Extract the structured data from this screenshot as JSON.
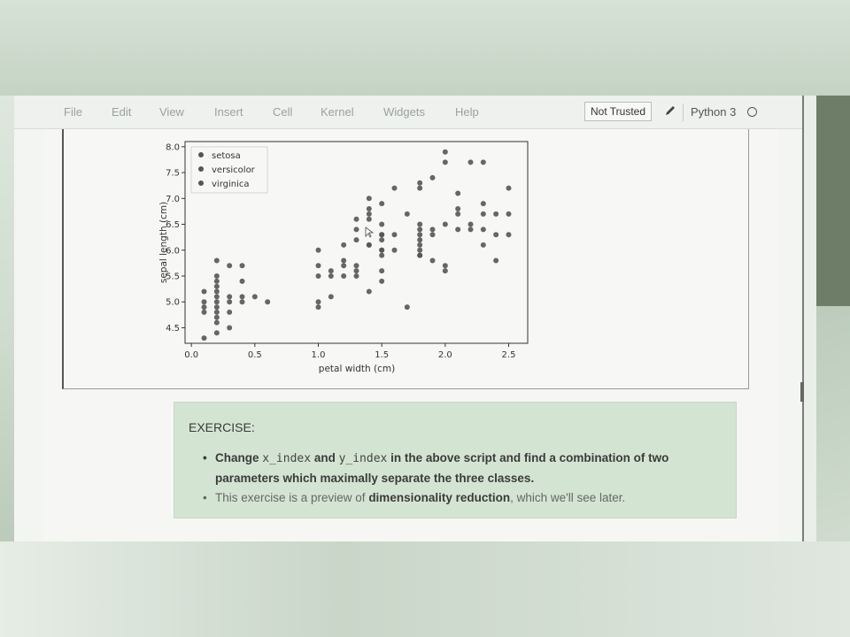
{
  "menubar": {
    "items": [
      "File",
      "Edit",
      "View",
      "Insert",
      "Cell",
      "Kernel",
      "Widgets",
      "Help"
    ],
    "trusted_label": "Not Trusted",
    "kernel_name": "Python 3"
  },
  "chart_data": {
    "type": "scatter",
    "title": "",
    "xlabel": "petal width (cm)",
    "ylabel": "sepal length (cm)",
    "xlim": [
      -0.05,
      2.65
    ],
    "ylim": [
      4.2,
      8.1
    ],
    "xticks": [
      "0.0",
      "0.5",
      "1.0",
      "1.5",
      "2.0",
      "2.5"
    ],
    "xtick_values": [
      0.0,
      0.5,
      1.0,
      1.5,
      2.0,
      2.5
    ],
    "yticks": [
      "4.5",
      "5.0",
      "5.5",
      "6.0",
      "6.5",
      "7.0",
      "7.5",
      "8.0"
    ],
    "ytick_values": [
      4.5,
      5.0,
      5.5,
      6.0,
      6.5,
      7.0,
      7.5,
      8.0
    ],
    "legend_position": "top-left",
    "marker_color": "#555555",
    "series": [
      {
        "name": "setosa",
        "points": [
          [
            0.1,
            4.3
          ],
          [
            0.1,
            4.8
          ],
          [
            0.1,
            4.9
          ],
          [
            0.1,
            5.0
          ],
          [
            0.1,
            5.2
          ],
          [
            0.2,
            4.4
          ],
          [
            0.2,
            4.6
          ],
          [
            0.2,
            4.7
          ],
          [
            0.2,
            4.8
          ],
          [
            0.2,
            4.9
          ],
          [
            0.2,
            5.0
          ],
          [
            0.2,
            5.1
          ],
          [
            0.2,
            5.2
          ],
          [
            0.2,
            5.3
          ],
          [
            0.2,
            5.4
          ],
          [
            0.2,
            5.5
          ],
          [
            0.2,
            5.8
          ],
          [
            0.3,
            4.5
          ],
          [
            0.3,
            4.8
          ],
          [
            0.3,
            5.0
          ],
          [
            0.3,
            5.1
          ],
          [
            0.3,
            5.7
          ],
          [
            0.4,
            5.0
          ],
          [
            0.4,
            5.1
          ],
          [
            0.4,
            5.4
          ],
          [
            0.4,
            5.7
          ],
          [
            0.5,
            5.1
          ],
          [
            0.6,
            5.0
          ]
        ]
      },
      {
        "name": "versicolor",
        "points": [
          [
            1.0,
            4.9
          ],
          [
            1.0,
            5.0
          ],
          [
            1.0,
            5.5
          ],
          [
            1.0,
            5.7
          ],
          [
            1.0,
            6.0
          ],
          [
            1.1,
            5.1
          ],
          [
            1.1,
            5.5
          ],
          [
            1.1,
            5.6
          ],
          [
            1.2,
            5.5
          ],
          [
            1.2,
            5.7
          ],
          [
            1.2,
            5.8
          ],
          [
            1.2,
            6.1
          ],
          [
            1.3,
            5.5
          ],
          [
            1.3,
            5.6
          ],
          [
            1.3,
            5.7
          ],
          [
            1.3,
            6.2
          ],
          [
            1.3,
            6.4
          ],
          [
            1.3,
            6.6
          ],
          [
            1.4,
            5.2
          ],
          [
            1.4,
            6.1
          ],
          [
            1.4,
            6.6
          ],
          [
            1.4,
            6.7
          ],
          [
            1.4,
            6.8
          ],
          [
            1.4,
            7.0
          ],
          [
            1.5,
            5.4
          ],
          [
            1.5,
            5.6
          ],
          [
            1.5,
            5.9
          ],
          [
            1.5,
            6.0
          ],
          [
            1.5,
            6.2
          ],
          [
            1.5,
            6.3
          ],
          [
            1.5,
            6.5
          ],
          [
            1.5,
            6.9
          ],
          [
            1.6,
            6.0
          ],
          [
            1.6,
            6.3
          ],
          [
            1.7,
            4.9
          ],
          [
            1.7,
            6.7
          ],
          [
            1.8,
            5.9
          ]
        ]
      },
      {
        "name": "virginica",
        "points": [
          [
            1.4,
            6.1
          ],
          [
            1.5,
            6.0
          ],
          [
            1.5,
            6.3
          ],
          [
            1.6,
            7.2
          ],
          [
            1.8,
            5.9
          ],
          [
            1.8,
            6.0
          ],
          [
            1.8,
            6.1
          ],
          [
            1.8,
            6.2
          ],
          [
            1.8,
            6.3
          ],
          [
            1.8,
            6.4
          ],
          [
            1.8,
            6.5
          ],
          [
            1.8,
            7.2
          ],
          [
            1.8,
            7.3
          ],
          [
            1.9,
            5.8
          ],
          [
            1.9,
            6.3
          ],
          [
            1.9,
            6.4
          ],
          [
            1.9,
            7.4
          ],
          [
            2.0,
            5.6
          ],
          [
            2.0,
            5.7
          ],
          [
            2.0,
            6.5
          ],
          [
            2.0,
            7.7
          ],
          [
            2.0,
            7.9
          ],
          [
            2.1,
            6.4
          ],
          [
            2.1,
            6.7
          ],
          [
            2.1,
            6.8
          ],
          [
            2.1,
            7.1
          ],
          [
            2.2,
            6.4
          ],
          [
            2.2,
            6.5
          ],
          [
            2.2,
            7.7
          ],
          [
            2.3,
            6.1
          ],
          [
            2.3,
            6.4
          ],
          [
            2.3,
            6.7
          ],
          [
            2.3,
            6.9
          ],
          [
            2.3,
            7.7
          ],
          [
            2.4,
            5.8
          ],
          [
            2.4,
            6.3
          ],
          [
            2.4,
            6.7
          ],
          [
            2.5,
            6.3
          ],
          [
            2.5,
            6.7
          ],
          [
            2.5,
            7.2
          ]
        ]
      }
    ]
  },
  "exercise": {
    "title": "EXERCISE",
    "title_suffix": ":",
    "bullet1_pre": "Change ",
    "bullet1_code1": "x_index",
    "bullet1_mid": " and ",
    "bullet1_code2": "y_index",
    "bullet1_post": " in the above script and find a combination of two parameters which maximally separate the three classes.",
    "bullet2_pre": "This exercise is a preview of ",
    "bullet2_bold": "dimensionality reduction",
    "bullet2_post": ", which we'll see later."
  }
}
